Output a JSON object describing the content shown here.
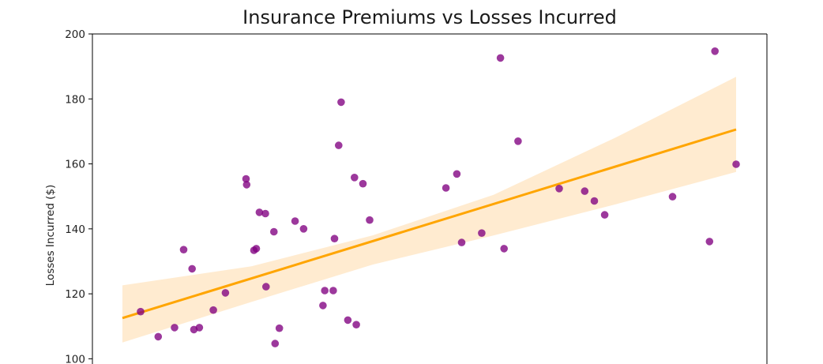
{
  "chart_data": {
    "type": "scatter",
    "title": "Insurance Premiums vs Losses Incurred",
    "xlabel": "",
    "ylabel": "Losses Incurred ($)",
    "ylim": [
      100,
      200
    ],
    "yticks": [
      100,
      120,
      140,
      160,
      180,
      200
    ],
    "xlim": [
      0,
      100
    ],
    "grid": false,
    "colors": {
      "points": "#800080",
      "regression_line": "#FFA500",
      "confidence_band": "#FFE4C0"
    },
    "points": [
      {
        "x": 1.7,
        "y": 114.5
      },
      {
        "x": 4.6,
        "y": 106.8
      },
      {
        "x": 7.3,
        "y": 109.6
      },
      {
        "x": 8.8,
        "y": 133.6
      },
      {
        "x": 10.2,
        "y": 127.7
      },
      {
        "x": 10.5,
        "y": 109.0
      },
      {
        "x": 11.4,
        "y": 109.6
      },
      {
        "x": 13.7,
        "y": 115.0
      },
      {
        "x": 15.7,
        "y": 120.3
      },
      {
        "x": 19.1,
        "y": 155.4
      },
      {
        "x": 19.2,
        "y": 153.6
      },
      {
        "x": 20.4,
        "y": 133.4
      },
      {
        "x": 20.8,
        "y": 133.9
      },
      {
        "x": 21.3,
        "y": 145.1
      },
      {
        "x": 22.3,
        "y": 144.7
      },
      {
        "x": 22.4,
        "y": 122.2
      },
      {
        "x": 23.7,
        "y": 139.1
      },
      {
        "x": 23.9,
        "y": 104.7
      },
      {
        "x": 24.6,
        "y": 109.4
      },
      {
        "x": 27.2,
        "y": 142.4
      },
      {
        "x": 28.6,
        "y": 140.0
      },
      {
        "x": 31.8,
        "y": 116.4
      },
      {
        "x": 32.1,
        "y": 121.0
      },
      {
        "x": 33.5,
        "y": 121.0
      },
      {
        "x": 33.7,
        "y": 137.0
      },
      {
        "x": 34.4,
        "y": 165.7
      },
      {
        "x": 34.8,
        "y": 179.0
      },
      {
        "x": 35.9,
        "y": 111.9
      },
      {
        "x": 37.0,
        "y": 155.8
      },
      {
        "x": 37.3,
        "y": 110.5
      },
      {
        "x": 38.4,
        "y": 153.9
      },
      {
        "x": 39.5,
        "y": 142.7
      },
      {
        "x": 52.1,
        "y": 152.6
      },
      {
        "x": 53.9,
        "y": 156.9
      },
      {
        "x": 54.7,
        "y": 135.8
      },
      {
        "x": 58.0,
        "y": 138.7
      },
      {
        "x": 61.1,
        "y": 192.6
      },
      {
        "x": 61.7,
        "y": 133.9
      },
      {
        "x": 64.0,
        "y": 167.0
      },
      {
        "x": 70.8,
        "y": 152.4
      },
      {
        "x": 75.0,
        "y": 151.6
      },
      {
        "x": 76.6,
        "y": 148.6
      },
      {
        "x": 78.3,
        "y": 144.3
      },
      {
        "x": 89.5,
        "y": 149.9
      },
      {
        "x": 95.6,
        "y": 136.1
      },
      {
        "x": 96.5,
        "y": 194.7
      },
      {
        "x": 100.0,
        "y": 159.9
      }
    ],
    "regression": {
      "x0": 0,
      "y0": 113.3,
      "x1": 100,
      "y1": 170.6
    },
    "confidence_band": {
      "x": [
        0,
        20,
        40,
        60,
        80,
        100
      ],
      "lower": [
        105.0,
        117.5,
        129.0,
        138.0,
        147.5,
        157.5
      ],
      "upper": [
        122.6,
        128.5,
        138.0,
        150.5,
        168.0,
        186.8
      ]
    }
  }
}
